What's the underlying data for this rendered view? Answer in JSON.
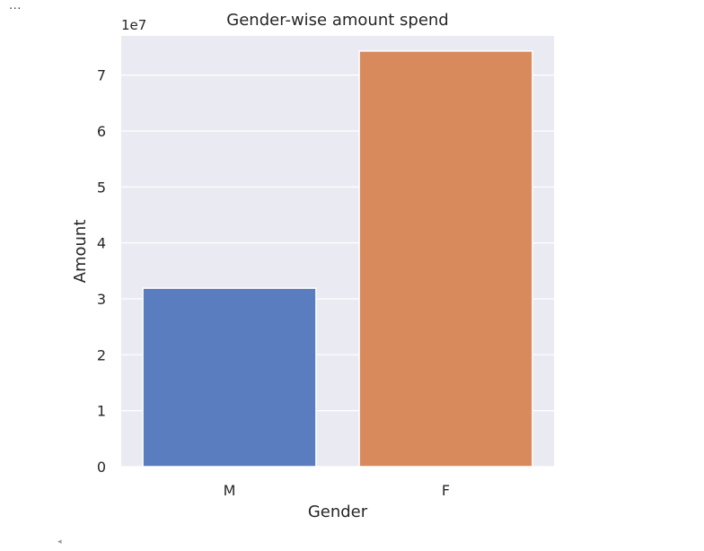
{
  "output_prompt": "...",
  "scroll_arrow": "◂",
  "chart_data": {
    "type": "bar",
    "title": "Gender-wise amount spend",
    "xlabel": "Gender",
    "ylabel": "Amount",
    "offset_text": "1e7",
    "categories": [
      "M",
      "F"
    ],
    "values": [
      31900000,
      74300000
    ],
    "ylim": [
      0,
      77000000
    ],
    "yticks": [
      0,
      1,
      2,
      3,
      4,
      5,
      6,
      7
    ],
    "grid": true,
    "colors": [
      "#5a7dc0",
      "#d98a5d"
    ],
    "background": "#eaeaf2"
  }
}
